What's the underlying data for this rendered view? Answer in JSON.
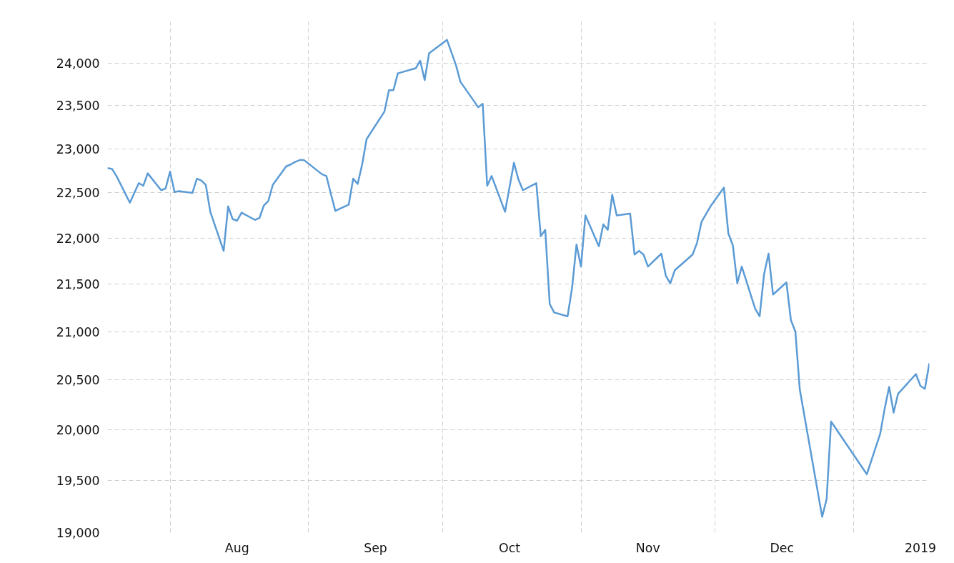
{
  "chart_data": {
    "type": "line",
    "log": "y",
    "grid": true,
    "xlim": [
      "2018-07-18",
      "2019-01-18"
    ],
    "xticks": [
      {
        "value": "2018-08-01",
        "label": null
      },
      {
        "value": "2018-08-16",
        "label": "Aug"
      },
      {
        "value": "2018-09-01",
        "label": null
      },
      {
        "value": "2018-09-16",
        "label": "Sep"
      },
      {
        "value": "2018-10-01",
        "label": null
      },
      {
        "value": "2018-10-16",
        "label": "Oct"
      },
      {
        "value": "2018-11-01",
        "label": null
      },
      {
        "value": "2018-11-16",
        "label": "Nov"
      },
      {
        "value": "2018-12-01",
        "label": null
      },
      {
        "value": "2018-12-16",
        "label": "Dec"
      },
      {
        "value": "2019-01-01",
        "label": null
      },
      {
        "value": "2019-01-16",
        "label": "2019"
      }
    ],
    "ylim": [
      19000,
      24500
    ],
    "yticks": [
      {
        "value": 19000,
        "label": "19,000"
      },
      {
        "value": 19500,
        "label": "19,500"
      },
      {
        "value": 20000,
        "label": "20,000"
      },
      {
        "value": 20500,
        "label": "20,500"
      },
      {
        "value": 21000,
        "label": "21,000"
      },
      {
        "value": 21500,
        "label": "21,500"
      },
      {
        "value": 22000,
        "label": "22,000"
      },
      {
        "value": 22500,
        "label": "22,500"
      },
      {
        "value": 23000,
        "label": "23,000"
      },
      {
        "value": 23500,
        "label": "23,500"
      },
      {
        "value": 24000,
        "label": "24,000"
      }
    ],
    "x": [
      "2018-07-18",
      "2018-07-19",
      "2018-07-20",
      "2018-07-23",
      "2018-07-25",
      "2018-07-26",
      "2018-07-27",
      "2018-07-30",
      "2018-07-31",
      "2018-08-01",
      "2018-08-02",
      "2018-08-03",
      "2018-08-06",
      "2018-08-07",
      "2018-08-08",
      "2018-08-09",
      "2018-08-10",
      "2018-08-13",
      "2018-08-14",
      "2018-08-15",
      "2018-08-16",
      "2018-08-17",
      "2018-08-20",
      "2018-08-21",
      "2018-08-22",
      "2018-08-23",
      "2018-08-24",
      "2018-08-27",
      "2018-08-28",
      "2018-08-29",
      "2018-08-30",
      "2018-08-31",
      "2018-09-04",
      "2018-09-05",
      "2018-09-06",
      "2018-09-07",
      "2018-09-10",
      "2018-09-11",
      "2018-09-12",
      "2018-09-13",
      "2018-09-14",
      "2018-09-18",
      "2018-09-19",
      "2018-09-20",
      "2018-09-21",
      "2018-09-25",
      "2018-09-26",
      "2018-09-27",
      "2018-09-28",
      "2018-10-01",
      "2018-10-02",
      "2018-10-04",
      "2018-10-05",
      "2018-10-09",
      "2018-10-10",
      "2018-10-11",
      "2018-10-12",
      "2018-10-15",
      "2018-10-17",
      "2018-10-18",
      "2018-10-19",
      "2018-10-22",
      "2018-10-23",
      "2018-10-24",
      "2018-10-25",
      "2018-10-26",
      "2018-10-29",
      "2018-10-30",
      "2018-10-31",
      "2018-11-01",
      "2018-11-02",
      "2018-11-05",
      "2018-11-06",
      "2018-11-07",
      "2018-11-08",
      "2018-11-09",
      "2018-11-12",
      "2018-11-13",
      "2018-11-14",
      "2018-11-15",
      "2018-11-16",
      "2018-11-19",
      "2018-11-20",
      "2018-11-21",
      "2018-11-22",
      "2018-11-26",
      "2018-11-27",
      "2018-11-28",
      "2018-11-30",
      "2018-12-03",
      "2018-12-04",
      "2018-12-05",
      "2018-12-06",
      "2018-12-07",
      "2018-12-10",
      "2018-12-11",
      "2018-12-12",
      "2018-12-13",
      "2018-12-14",
      "2018-12-17",
      "2018-12-18",
      "2018-12-19",
      "2018-12-20",
      "2018-12-25",
      "2018-12-26",
      "2018-12-27",
      "2019-01-04",
      "2019-01-07",
      "2019-01-08",
      "2019-01-09",
      "2019-01-10",
      "2019-01-11",
      "2019-01-15",
      "2019-01-16",
      "2019-01-17",
      "2019-01-18"
    ],
    "series": [
      {
        "color": "#5b9bd5",
        "values": [
          22780,
          22770,
          22690,
          22390,
          22610,
          22580,
          22720,
          22530,
          22550,
          22740,
          22510,
          22520,
          22500,
          22660,
          22640,
          22590,
          22290,
          21860,
          22350,
          22210,
          22190,
          22280,
          22200,
          22220,
          22360,
          22410,
          22590,
          22800,
          22820,
          22850,
          22870,
          22870,
          22710,
          22690,
          22490,
          22300,
          22370,
          22660,
          22600,
          22820,
          23110,
          23430,
          23680,
          23680,
          23880,
          23940,
          24030,
          23800,
          24120,
          24240,
          24280,
          23980,
          23780,
          23480,
          23520,
          22580,
          22690,
          22290,
          22840,
          22650,
          22530,
          22610,
          22020,
          22090,
          21290,
          21200,
          21160,
          21460,
          21930,
          21690,
          22250,
          21910,
          22150,
          22090,
          22480,
          22250,
          22270,
          21820,
          21860,
          21820,
          21690,
          21830,
          21590,
          21510,
          21650,
          21820,
          21950,
          22180,
          22350,
          22560,
          22050,
          21920,
          21510,
          21690,
          21240,
          21160,
          21610,
          21830,
          21390,
          21520,
          21120,
          21000,
          20400,
          19150,
          19320,
          20080,
          19560,
          19960,
          20210,
          20430,
          20170,
          20360,
          20560,
          20440,
          20410,
          20670
        ]
      }
    ]
  }
}
